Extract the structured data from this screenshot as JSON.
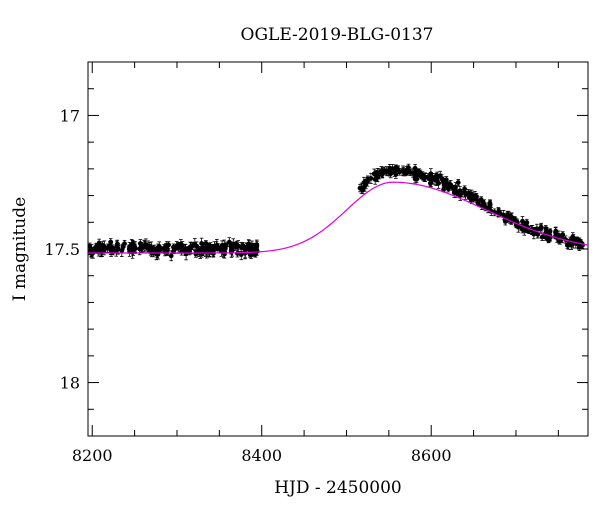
{
  "chart_data": {
    "type": "scatter",
    "title": "OGLE-2019-BLG-0137",
    "xlabel": "HJD - 2450000",
    "ylabel": "I magnitude",
    "xlim": [
      8195,
      8785
    ],
    "ylim": [
      18.2,
      16.8
    ],
    "y_inverted": true,
    "x_ticks": [
      8200,
      8400,
      8600
    ],
    "x_tick_labels": [
      "8200",
      "8400",
      "8600"
    ],
    "y_ticks": [
      17,
      17.5,
      18
    ],
    "y_tick_labels": [
      "17",
      "17.5",
      "18"
    ],
    "grid": false,
    "series": [
      {
        "kind": "points-with-errorbars",
        "color": "#000000",
        "segments": [
          {
            "x_start": 8196,
            "x_end": 8395,
            "count": 210,
            "base_mag": 17.5,
            "scatter": 0.018,
            "err": 0.016
          },
          {
            "x_start": 8515,
            "x_end": 8780,
            "count": 230,
            "scatter": 0.016,
            "err": 0.014
          }
        ]
      },
      {
        "kind": "model-curve",
        "color": "#e000e0",
        "baseline_mag": 17.515,
        "peak_mag": 17.25,
        "t0": 8555,
        "width_rise": 55,
        "width_fall": 110
      }
    ]
  }
}
